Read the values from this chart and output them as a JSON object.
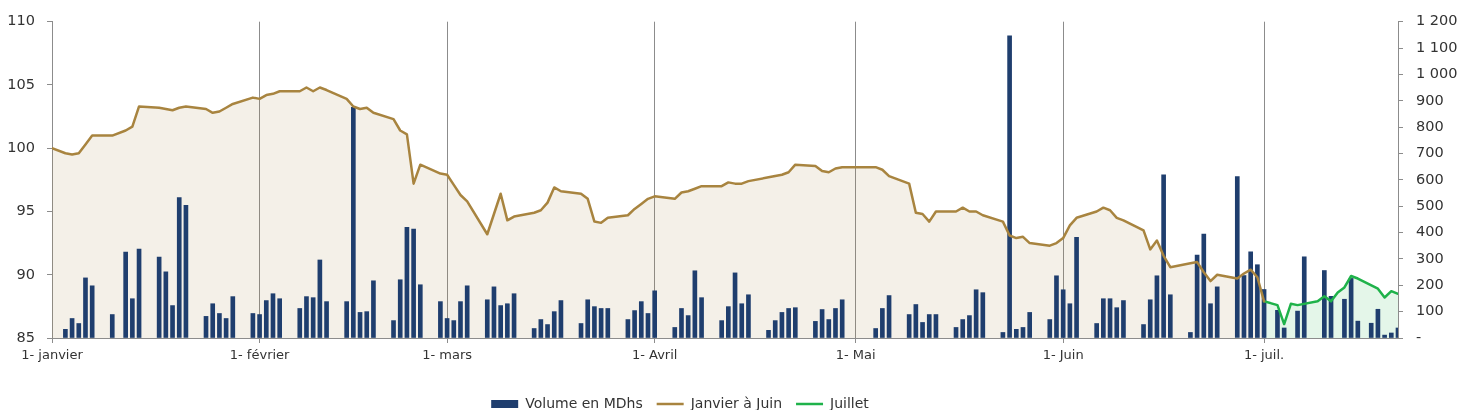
{
  "chart_data": {
    "type": "bar",
    "legend": "bottom",
    "grid": "x",
    "xlim": [
      "--01-01",
      "--07-21"
    ],
    "xticks": [
      {
        "value": "--01-01",
        "label": "1- janvier"
      },
      {
        "value": "--02-01",
        "label": "1- février"
      },
      {
        "value": "--03-01",
        "label": "1- mars"
      },
      {
        "value": "--04-01",
        "label": "1- Avril"
      },
      {
        "value": "--05-01",
        "label": "1- Mai"
      },
      {
        "value": "--06-01",
        "label": "1- Juin"
      },
      {
        "value": "--07-01",
        "label": "1- juil."
      }
    ],
    "ylim": [
      85,
      110
    ],
    "yticks": [
      85,
      90,
      95,
      100,
      105,
      110
    ],
    "y2lim": [
      0,
      1200
    ],
    "y2ticks": [
      {
        "value": 0,
        "label": "-"
      },
      100,
      200,
      300,
      400,
      500,
      600,
      700,
      800,
      900,
      {
        "value": 1000,
        "label": "1 000"
      },
      {
        "value": 1100,
        "label": "1 100"
      },
      {
        "value": 1200,
        "label": "1 200"
      }
    ],
    "series": [
      {
        "name": "Volume en MDhs",
        "axis": "y2",
        "color": "#1f3e6e",
        "x": [
          "--01-03",
          "--01-04",
          "--01-05",
          "--01-06",
          "--01-07",
          "--01-10",
          "--01-12",
          "--01-13",
          "--01-14",
          "--01-17",
          "--01-18",
          "--01-19",
          "--01-20",
          "--01-21",
          "--01-24",
          "--01-25",
          "--01-26",
          "--01-27",
          "--01-28",
          "--01-31",
          "--02-01",
          "--02-02",
          "--02-03",
          "--02-04",
          "--02-07",
          "--02-08",
          "--02-09",
          "--02-10",
          "--02-11",
          "--02-14",
          "--02-15",
          "--02-16",
          "--02-17",
          "--02-18",
          "--02-21",
          "--02-22",
          "--02-23",
          "--02-24",
          "--02-25",
          "--02-28",
          "--03-01",
          "--03-02",
          "--03-03",
          "--03-04",
          "--03-07",
          "--03-08",
          "--03-09",
          "--03-10",
          "--03-11",
          "--03-14",
          "--03-15",
          "--03-16",
          "--03-17",
          "--03-18",
          "--03-21",
          "--03-22",
          "--03-23",
          "--03-24",
          "--03-25",
          "--03-28",
          "--03-29",
          "--03-30",
          "--03-31",
          "--04-01",
          "--04-04",
          "--04-05",
          "--04-06",
          "--04-07",
          "--04-08",
          "--04-11",
          "--04-12",
          "--04-13",
          "--04-14",
          "--04-15",
          "--04-18",
          "--04-19",
          "--04-20",
          "--04-21",
          "--04-22",
          "--04-25",
          "--04-26",
          "--04-27",
          "--04-28",
          "--04-29",
          "--05-04",
          "--05-05",
          "--05-06",
          "--05-09",
          "--05-10",
          "--05-11",
          "--05-12",
          "--05-13",
          "--05-16",
          "--05-17",
          "--05-18",
          "--05-19",
          "--05-20",
          "--05-23",
          "--05-24",
          "--05-25",
          "--05-26",
          "--05-27",
          "--05-30",
          "--05-31",
          "--06-01",
          "--06-02",
          "--06-03",
          "--06-06",
          "--06-07",
          "--06-08",
          "--06-09",
          "--06-10",
          "--06-13",
          "--06-14",
          "--06-15",
          "--06-16",
          "--06-17",
          "--06-20",
          "--06-21",
          "--06-22",
          "--06-23",
          "--06-24",
          "--06-27",
          "--06-28",
          "--06-29",
          "--06-30",
          "--07-01",
          "--07-03",
          "--07-04",
          "--07-06",
          "--07-07",
          "--07-10",
          "--07-11",
          "--07-13",
          "--07-14",
          "--07-15",
          "--07-17",
          "--07-18",
          "--07-19",
          "--07-20",
          "--07-21"
        ],
        "values": [
          33,
          74,
          55,
          228,
          198,
          89,
          326,
          149,
          337,
          307,
          251,
          123,
          533,
          503,
          82,
          130,
          93,
          74,
          157,
          93,
          89,
          142,
          168,
          149,
          112,
          157,
          153,
          296,
          138,
          138,
          875,
          97,
          100,
          217,
          66,
          221,
          420,
          413,
          202,
          138,
          74,
          66,
          138,
          198,
          145,
          194,
          123,
          130,
          168,
          36,
          70,
          51,
          100,
          142,
          55,
          145,
          119,
          112,
          112,
          70,
          104,
          138,
          93,
          179,
          40,
          112,
          85,
          255,
          153,
          66,
          119,
          247,
          130,
          164,
          29,
          66,
          97,
          112,
          115,
          63,
          108,
          70,
          112,
          145,
          36,
          112,
          161,
          89,
          127,
          59,
          89,
          89,
          40,
          70,
          85,
          183,
          172,
          21,
          1146,
          33,
          40,
          97,
          70,
          236,
          183,
          130,
          382,
          55,
          149,
          149,
          115,
          142,
          51,
          145,
          236,
          619,
          164,
          21,
          315,
          394,
          130,
          194,
          612,
          237,
          327,
          278,
          184,
          105,
          38,
          102,
          308,
          256,
          158,
          147,
          226,
          64,
          56,
          109,
          11,
          19,
          38
        ]
      },
      {
        "name": "Janvier à Juin",
        "type": "area",
        "color": "#a8843f",
        "x": [
          "--01-01",
          "--01-03",
          "--01-04",
          "--01-05",
          "--01-06",
          "--01-07",
          "--01-10",
          "--01-12",
          "--01-13",
          "--01-14",
          "--01-17",
          "--01-18",
          "--01-19",
          "--01-20",
          "--01-21",
          "--01-24",
          "--01-25",
          "--01-26",
          "--01-27",
          "--01-28",
          "--01-31",
          "--02-01",
          "--02-02",
          "--02-03",
          "--02-04",
          "--02-07",
          "--02-08",
          "--02-09",
          "--02-10",
          "--02-11",
          "--02-14",
          "--02-15",
          "--02-16",
          "--02-17",
          "--02-18",
          "--02-21",
          "--02-22",
          "--02-23",
          "--02-24",
          "--02-25",
          "--02-28",
          "--03-01",
          "--03-02",
          "--03-03",
          "--03-04",
          "--03-07",
          "--03-08",
          "--03-09",
          "--03-10",
          "--03-11",
          "--03-14",
          "--03-15",
          "--03-16",
          "--03-17",
          "--03-18",
          "--03-21",
          "--03-22",
          "--03-23",
          "--03-24",
          "--03-25",
          "--03-28",
          "--03-29",
          "--03-30",
          "--03-31",
          "--04-01",
          "--04-04",
          "--04-05",
          "--04-06",
          "--04-07",
          "--04-08",
          "--04-11",
          "--04-12",
          "--04-13",
          "--04-14",
          "--04-15",
          "--04-18",
          "--04-19",
          "--04-20",
          "--04-21",
          "--04-22",
          "--04-25",
          "--04-26",
          "--04-27",
          "--04-28",
          "--04-29",
          "--05-04",
          "--05-05",
          "--05-06",
          "--05-09",
          "--05-10",
          "--05-11",
          "--05-12",
          "--05-13",
          "--05-16",
          "--05-17",
          "--05-18",
          "--05-19",
          "--05-20",
          "--05-23",
          "--05-24",
          "--05-25",
          "--05-26",
          "--05-27",
          "--05-30",
          "--05-31",
          "--06-01",
          "--06-02",
          "--06-03",
          "--06-06",
          "--06-07",
          "--06-08",
          "--06-09",
          "--06-10",
          "--06-13",
          "--06-14",
          "--06-15",
          "--06-16",
          "--06-17",
          "--06-20",
          "--06-21",
          "--06-22",
          "--06-23",
          "--06-24",
          "--06-27",
          "--06-28",
          "--06-29",
          "--06-30",
          "--07-01"
        ],
        "values": [
          100,
          99.6,
          99.5,
          99.6,
          100.3,
          101.0,
          101.0,
          101.4,
          101.7,
          103.3,
          103.2,
          103.1,
          103.0,
          103.2,
          103.3,
          103.1,
          102.8,
          102.9,
          103.2,
          103.5,
          104.0,
          103.9,
          104.2,
          104.3,
          104.5,
          104.5,
          104.8,
          104.5,
          104.8,
          104.6,
          103.9,
          103.3,
          103.1,
          103.2,
          102.8,
          102.3,
          101.4,
          101.1,
          97.2,
          98.7,
          98.0,
          97.9,
          97.1,
          96.3,
          95.8,
          93.2,
          94.8,
          96.4,
          94.3,
          94.6,
          94.9,
          95.1,
          95.7,
          96.9,
          96.6,
          96.4,
          96.0,
          94.2,
          94.1,
          94.5,
          94.7,
          95.2,
          95.6,
          96.0,
          96.2,
          96.0,
          96.5,
          96.6,
          96.8,
          97.0,
          97.0,
          97.3,
          97.2,
          97.2,
          97.4,
          97.7,
          97.8,
          97.9,
          98.1,
          98.7,
          98.6,
          98.2,
          98.1,
          98.4,
          98.5,
          98.5,
          98.3,
          97.8,
          97.2,
          94.9,
          94.8,
          94.2,
          95.0,
          95.0,
          95.3,
          95.0,
          95.0,
          94.7,
          94.2,
          93.1,
          92.9,
          93.0,
          92.5,
          92.3,
          92.5,
          92.9,
          93.9,
          94.5,
          95.0,
          95.3,
          95.1,
          94.5,
          94.3,
          93.5,
          92.0,
          92.7,
          91.5,
          90.6,
          90.9,
          91.0,
          90.2,
          89.5,
          90.0,
          89.7,
          90.1,
          90.4,
          89.8,
          87.9
        ]
      },
      {
        "name": "Juillet",
        "type": "area",
        "color": "#1fb24a",
        "x": [
          "--07-01",
          "--07-03",
          "--07-04",
          "--07-05",
          "--07-06",
          "--07-09",
          "--07-10",
          "--07-11",
          "--07-12",
          "--07-13",
          "--07-14",
          "--07-15",
          "--07-18",
          "--07-19",
          "--07-20",
          "--07-21"
        ],
        "values": [
          87.9,
          87.6,
          86.1,
          87.7,
          87.6,
          87.9,
          88.3,
          87.9,
          88.6,
          89.0,
          89.9,
          89.7,
          88.9,
          88.2,
          88.7,
          88.5
        ]
      }
    ]
  }
}
